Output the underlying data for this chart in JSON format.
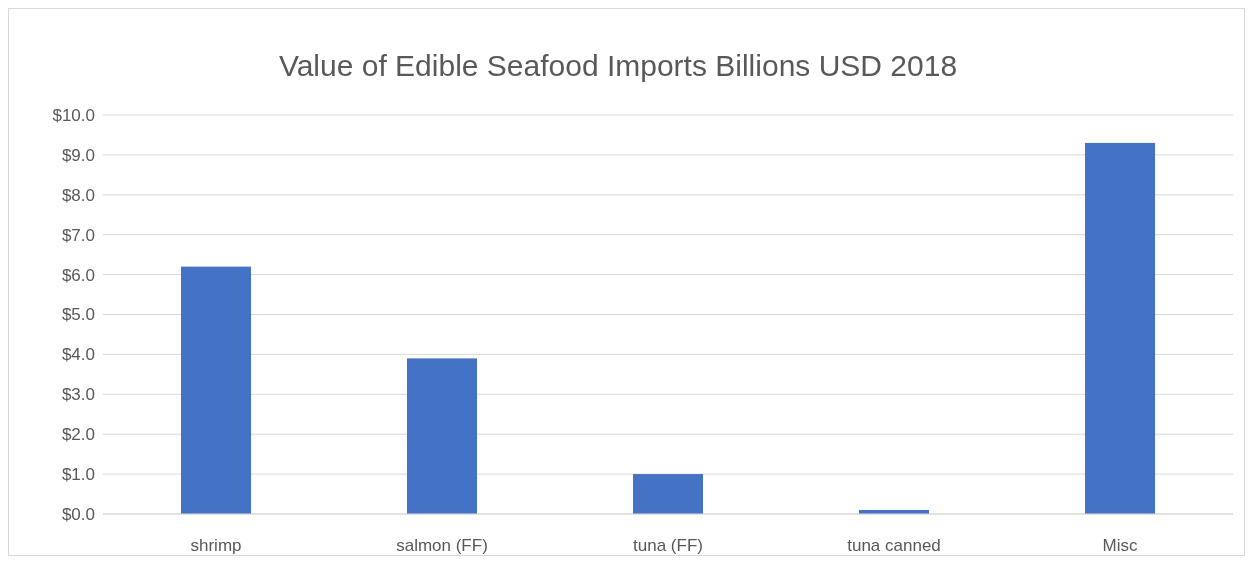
{
  "chart_data": {
    "type": "bar",
    "title": "Value of Edible Seafood Imports Billions USD 2018",
    "categories": [
      "shrimp",
      "salmon (FF)",
      "tuna (FF)",
      "tuna canned",
      "Misc"
    ],
    "values": [
      6.2,
      3.9,
      1.0,
      0.1,
      9.3
    ],
    "color": "#4472c4",
    "ylim": [
      0,
      10
    ],
    "yticks": [
      {
        "value": 0,
        "label": "$0.0"
      },
      {
        "value": 1,
        "label": "$1.0"
      },
      {
        "value": 2,
        "label": "$2.0"
      },
      {
        "value": 3,
        "label": "$3.0"
      },
      {
        "value": 4,
        "label": "$4.0"
      },
      {
        "value": 5,
        "label": "$5.0"
      },
      {
        "value": 6,
        "label": "$6.0"
      },
      {
        "value": 7,
        "label": "$7.0"
      },
      {
        "value": 8,
        "label": "$8.0"
      },
      {
        "value": 9,
        "label": "$9.0"
      },
      {
        "value": 10,
        "label": "$10.0"
      }
    ],
    "grid": "y"
  }
}
